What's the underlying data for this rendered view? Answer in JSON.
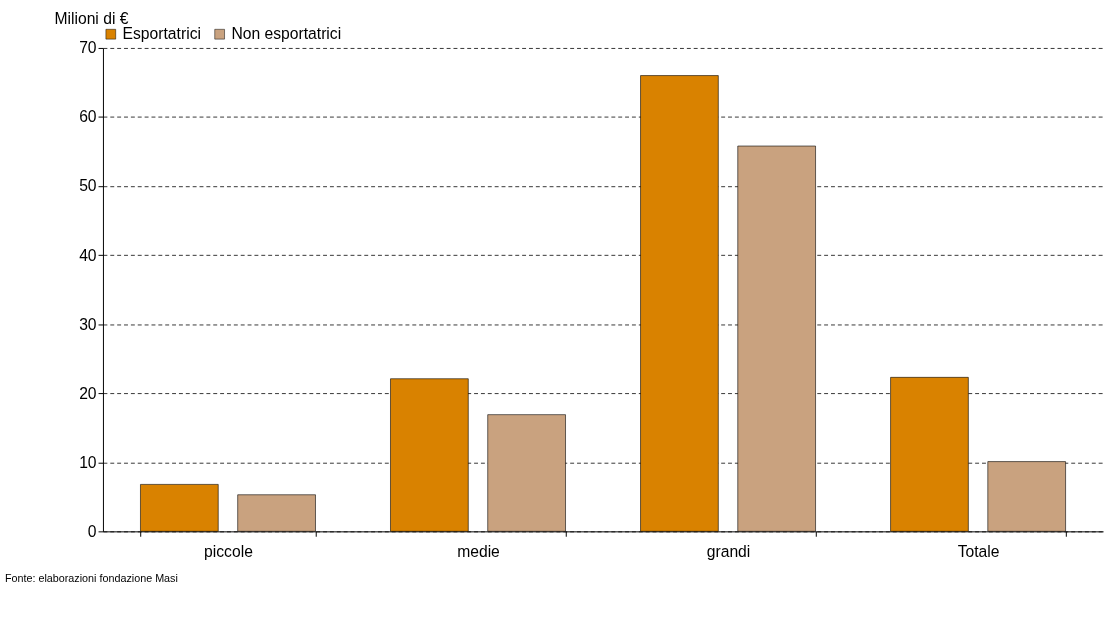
{
  "chart_data": {
    "type": "bar",
    "ylabel": "Milioni di €",
    "categories": [
      "piccole",
      "medie",
      "grandi",
      "Totale"
    ],
    "series": [
      {
        "name": "Esportatrici",
        "color": "#d98200",
        "values": [
          6.8,
          22.1,
          66,
          22.3
        ]
      },
      {
        "name": "Non esportatrici",
        "color": "#c9a27f",
        "values": [
          5.3,
          16.9,
          55.8,
          10.1
        ]
      }
    ],
    "ylim": [
      0,
      70
    ],
    "yticks": [
      0,
      10,
      20,
      30,
      40,
      50,
      60,
      70
    ],
    "grid": "y",
    "line_style": "dashed",
    "legend": "top",
    "annotations": [
      "Fonte: elaborazioni fondazione Masi"
    ]
  }
}
